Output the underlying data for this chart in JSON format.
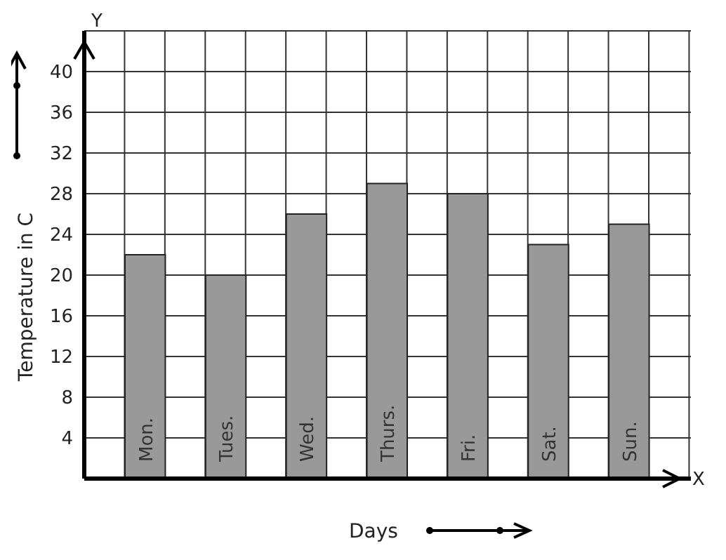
{
  "chart_data": {
    "type": "bar",
    "xlabel": "Days",
    "ylabel": "Temperature in C",
    "categories": [
      "Mon.",
      "Tues.",
      "Wed.",
      "Thurs.",
      "Fri.",
      "Sat.",
      "Sun."
    ],
    "values": [
      22,
      20,
      26,
      29,
      28,
      23,
      25
    ],
    "color": "#999999",
    "ylim": [
      0,
      44
    ],
    "yticks": [
      4,
      8,
      12,
      16,
      20,
      24,
      28,
      32,
      36,
      40
    ],
    "grid": true,
    "annotations": [
      "Y",
      "X"
    ]
  }
}
